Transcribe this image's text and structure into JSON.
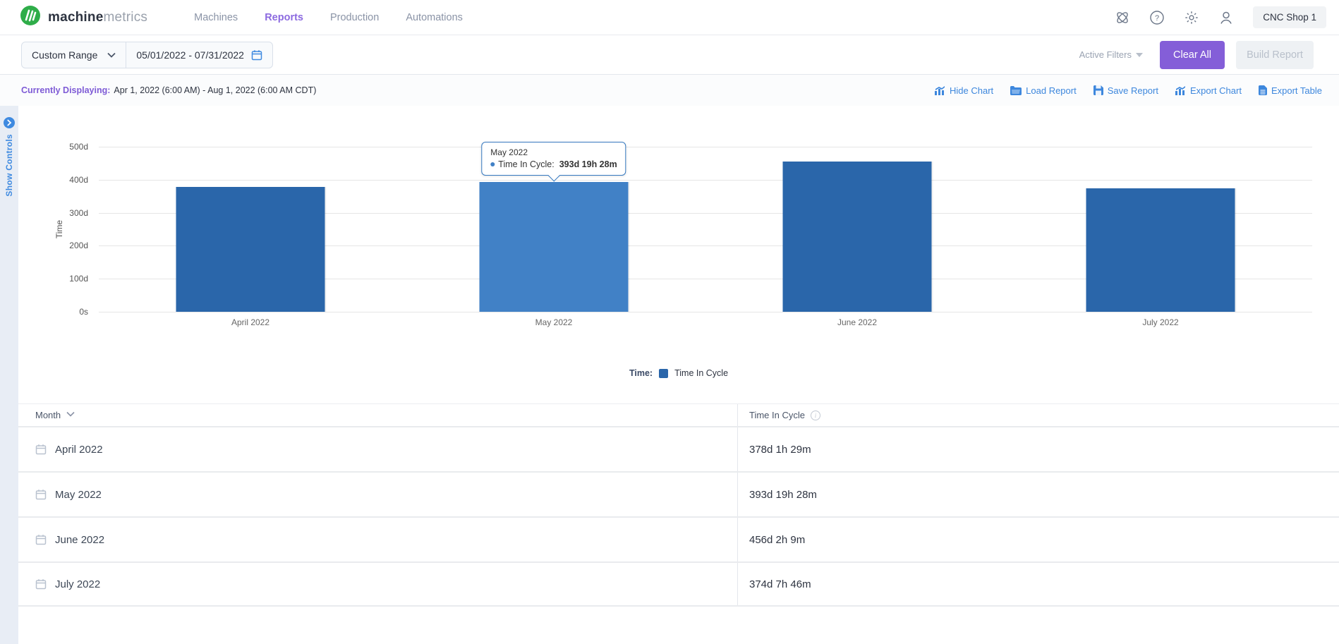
{
  "header": {
    "brand_bold": "machine",
    "brand_light": "metrics",
    "nav": [
      {
        "label": "Machines",
        "active": false
      },
      {
        "label": "Reports",
        "active": true
      },
      {
        "label": "Production",
        "active": false
      },
      {
        "label": "Automations",
        "active": false
      }
    ],
    "shop_selector": "CNC Shop 1"
  },
  "filter_bar": {
    "range_type": "Custom Range",
    "date_range": "05/01/2022  -  07/31/2022",
    "active_filters_label": "Active Filters",
    "clear_all_label": "Clear All",
    "build_report_label": "Build Report"
  },
  "info_bar": {
    "currently_displaying_label": "Currently Displaying:",
    "currently_displaying_value": "Apr 1, 2022 (6:00 AM) - Aug 1, 2022 (6:00 AM CDT)",
    "actions": [
      "Hide Chart",
      "Load Report",
      "Save Report",
      "Export Chart",
      "Export Table"
    ]
  },
  "show_controls_label": "Show Controls",
  "chart_data": {
    "type": "bar",
    "title": "",
    "xlabel": "",
    "ylabel": "Time",
    "categories": [
      "April 2022",
      "May 2022",
      "June 2022",
      "July 2022"
    ],
    "values_days": [
      378.06,
      393.81,
      456.09,
      374.32
    ],
    "values_display": [
      "378d 1h 29m",
      "393d 19h 28m",
      "456d 2h 9m",
      "374d 7h 46m"
    ],
    "yticks": [
      "500d",
      "400d",
      "300d",
      "200d",
      "100d",
      "0s"
    ],
    "ylim_days": [
      0,
      500
    ],
    "grid": true,
    "series_name": "Time In Cycle",
    "legend_prefix": "Time:",
    "legend_position": "bottom-center",
    "bar_color": "#2a66aa",
    "bar_color_highlight": "#4181c6",
    "highlighted_index": 1,
    "tooltip": {
      "title": "May 2022",
      "label": "Time In Cycle:",
      "value": "393d 19h 28m"
    }
  },
  "table": {
    "columns": [
      "Month",
      "Time In Cycle"
    ],
    "rows": [
      {
        "month": "April 2022",
        "time_in_cycle": "378d 1h 29m"
      },
      {
        "month": "May 2022",
        "time_in_cycle": "393d 19h 28m"
      },
      {
        "month": "June 2022",
        "time_in_cycle": "456d 2h 9m"
      },
      {
        "month": "July 2022",
        "time_in_cycle": "374d 7h 46m"
      }
    ]
  }
}
